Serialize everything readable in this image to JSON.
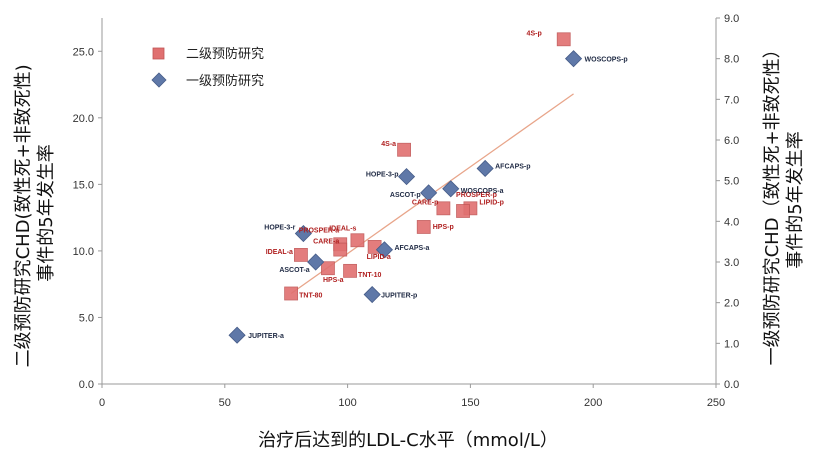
{
  "chart_data": {
    "type": "scatter",
    "xlabel": "治疗后达到的LDL-C水平（mmol/L）",
    "ylabel_left": "二级预防研究CHD(致性死+非致死性)事件的5年发生率",
    "ylabel_left_lines": [
      "二级预防研究CHD(致性死+非致死性)",
      "事件的5年发生率"
    ],
    "ylabel_right": "一级预防研究CHD（致性死+非致死性）事件的5年发生率",
    "ylabel_right_lines": [
      "一级预防研究CHD（致性死+非致死性）",
      "事件的5年发生率"
    ],
    "xlim": [
      0,
      250
    ],
    "ylim_left": [
      0,
      27.5
    ],
    "ylim_right": [
      0,
      9
    ],
    "x_ticks": [
      "0",
      "50",
      "100",
      "150",
      "200",
      "250"
    ],
    "y_ticks_left": [
      "0.0",
      "5.0",
      "10.0",
      "15.0",
      "20.0",
      "25.0"
    ],
    "y_ticks_right": [
      "0.0",
      "1.0",
      "2.0",
      "3.0",
      "4.0",
      "5.0",
      "6.0",
      "7.0",
      "8.0",
      "9.0"
    ],
    "legend_position": "top-left",
    "trendline": {
      "x1": 77,
      "y1_left": 6.8,
      "x2": 192,
      "y2_left": 21.8,
      "color": "#e8a58a"
    },
    "series": [
      {
        "name": "二级预防研究",
        "axis": "left",
        "marker": "square",
        "color": "#e07070",
        "points": [
          {
            "label": "4S-p",
            "x": 188,
            "y": 25.9
          },
          {
            "label": "4S-a",
            "x": 123,
            "y": 17.6
          },
          {
            "label": "CARE-p",
            "x": 139,
            "y": 13.2
          },
          {
            "label": "LIPID-p",
            "x": 150,
            "y": 13.2
          },
          {
            "label": "PROSPER-p",
            "x": 147,
            "y": 13.0
          },
          {
            "label": "HPS-p",
            "x": 131,
            "y": 11.8
          },
          {
            "label": "PROSPER-a",
            "x": 97,
            "y": 10.5
          },
          {
            "label": "IDEAL-s",
            "x": 104,
            "y": 10.8
          },
          {
            "label": "CARE-a",
            "x": 97,
            "y": 10.1
          },
          {
            "label": "LIPID-a",
            "x": 111,
            "y": 10.3
          },
          {
            "label": "IDEAL-a",
            "x": 81,
            "y": 9.7
          },
          {
            "label": "HPS-a",
            "x": 92,
            "y": 8.7
          },
          {
            "label": "TNT-10",
            "x": 101,
            "y": 8.5
          },
          {
            "label": "TNT-80",
            "x": 77,
            "y": 6.8
          }
        ]
      },
      {
        "name": "一级预防研究",
        "axis": "right",
        "marker": "diamond",
        "color": "#5f78a8",
        "points": [
          {
            "label": "WOSCOPS-p",
            "x": 192,
            "y": 8.0
          },
          {
            "label": "AFCAPS-p",
            "x": 156,
            "y": 5.3
          },
          {
            "label": "HOPE-3-p",
            "x": 124,
            "y": 5.1
          },
          {
            "label": "ASCOT-p",
            "x": 133,
            "y": 4.7
          },
          {
            "label": "WOSCOPS-a",
            "x": 142,
            "y": 4.8
          },
          {
            "label": "HOPE-3-r",
            "x": 82,
            "y": 3.7
          },
          {
            "label": "AFCAPS-a",
            "x": 115,
            "y": 3.3
          },
          {
            "label": "ASCOT-a",
            "x": 87,
            "y": 3.0
          },
          {
            "label": "JUPITER-p",
            "x": 110,
            "y": 2.2
          },
          {
            "label": "JUPITER-a",
            "x": 55,
            "y": 1.2
          }
        ]
      }
    ]
  }
}
